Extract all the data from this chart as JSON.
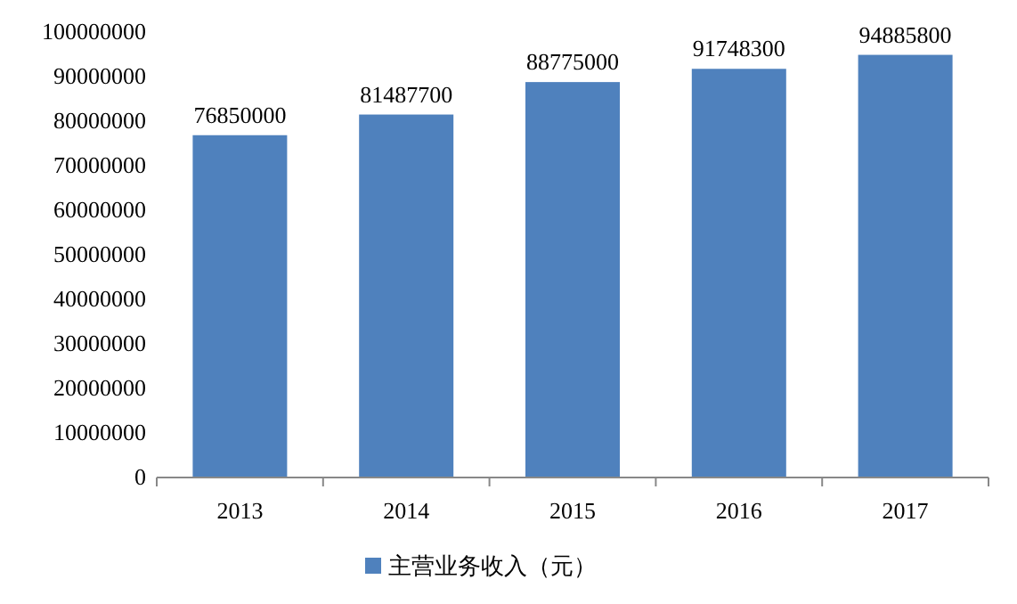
{
  "chart_data": {
    "type": "bar",
    "categories": [
      "2013",
      "2014",
      "2015",
      "2016",
      "2017"
    ],
    "series": [
      {
        "name": "主营业务收入（元）",
        "color": "#4f81bd",
        "values": [
          76850000,
          81487700,
          88775000,
          91748300,
          94885800
        ]
      }
    ],
    "ylim": [
      0,
      100000000
    ],
    "yticks": [
      0,
      10000000,
      20000000,
      30000000,
      40000000,
      50000000,
      60000000,
      70000000,
      80000000,
      90000000,
      100000000
    ],
    "data_labels": true,
    "grid": false,
    "legend": "bottom"
  }
}
